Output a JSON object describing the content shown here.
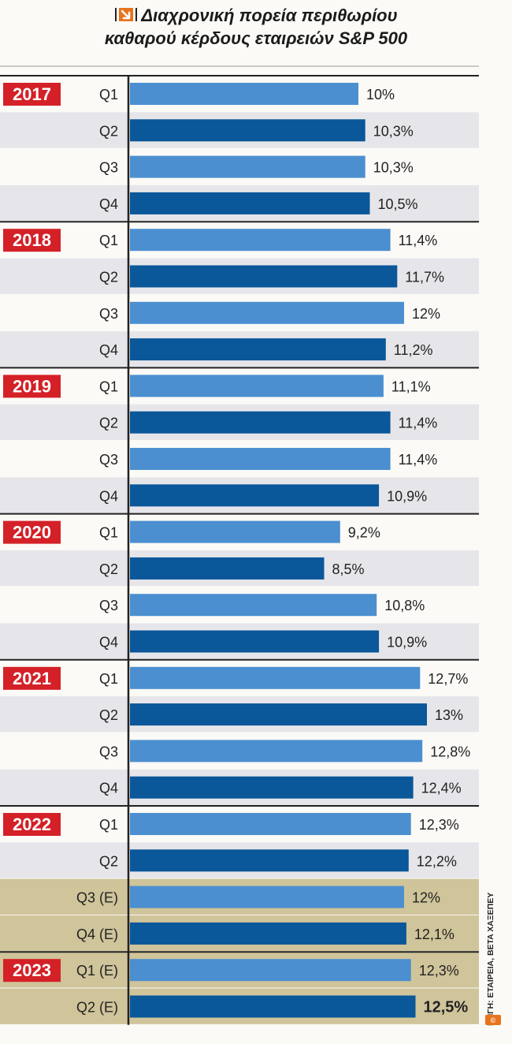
{
  "chart_data": {
    "type": "bar",
    "orientation": "horizontal",
    "title": "Διαχρονική πορεία περιθωρίου καθαρού κέρδους εταιρειών S&P 500",
    "title_line1": "Διαχρονική πορεία περιθωρίου",
    "title_line2": "καθαρού κέρδους εταιρειών S&P 500",
    "source": "ΠΗΓΗ: ΕΤΑΙΡΕΙΑ, BETA ΧΑΞΕΠΕΥ",
    "xlim": [
      0,
      13
    ],
    "series": [
      {
        "name": "Net profit margin",
        "values": [
          10,
          10.3,
          10.3,
          10.5,
          11.4,
          11.7,
          12,
          11.2,
          11.1,
          11.4,
          11.4,
          10.9,
          9.2,
          8.5,
          10.8,
          10.9,
          12.7,
          13,
          12.8,
          12.4,
          12.3,
          12.2,
          12,
          12.1,
          12.3,
          12.5
        ]
      }
    ],
    "rows": [
      {
        "year": "2017",
        "quarter": "Q1",
        "value": 10,
        "label": "10%",
        "estimate": false
      },
      {
        "year": "",
        "quarter": "Q2",
        "value": 10.3,
        "label": "10,3%",
        "estimate": false
      },
      {
        "year": "",
        "quarter": "Q3",
        "value": 10.3,
        "label": "10,3%",
        "estimate": false
      },
      {
        "year": "",
        "quarter": "Q4",
        "value": 10.5,
        "label": "10,5%",
        "estimate": false
      },
      {
        "year": "2018",
        "quarter": "Q1",
        "value": 11.4,
        "label": "11,4%",
        "estimate": false
      },
      {
        "year": "",
        "quarter": "Q2",
        "value": 11.7,
        "label": "11,7%",
        "estimate": false
      },
      {
        "year": "",
        "quarter": "Q3",
        "value": 12,
        "label": "12%",
        "estimate": false
      },
      {
        "year": "",
        "quarter": "Q4",
        "value": 11.2,
        "label": "11,2%",
        "estimate": false
      },
      {
        "year": "2019",
        "quarter": "Q1",
        "value": 11.1,
        "label": "11,1%",
        "estimate": false
      },
      {
        "year": "",
        "quarter": "Q2",
        "value": 11.4,
        "label": "11,4%",
        "estimate": false
      },
      {
        "year": "",
        "quarter": "Q3",
        "value": 11.4,
        "label": "11,4%",
        "estimate": false
      },
      {
        "year": "",
        "quarter": "Q4",
        "value": 10.9,
        "label": "10,9%",
        "estimate": false
      },
      {
        "year": "2020",
        "quarter": "Q1",
        "value": 9.2,
        "label": "9,2%",
        "estimate": false
      },
      {
        "year": "",
        "quarter": "Q2",
        "value": 8.5,
        "label": "8,5%",
        "estimate": false
      },
      {
        "year": "",
        "quarter": "Q3",
        "value": 10.8,
        "label": "10,8%",
        "estimate": false
      },
      {
        "year": "",
        "quarter": "Q4",
        "value": 10.9,
        "label": "10,9%",
        "estimate": false
      },
      {
        "year": "2021",
        "quarter": "Q1",
        "value": 12.7,
        "label": "12,7%",
        "estimate": false
      },
      {
        "year": "",
        "quarter": "Q2",
        "value": 13,
        "label": "13%",
        "estimate": false
      },
      {
        "year": "",
        "quarter": "Q3",
        "value": 12.8,
        "label": "12,8%",
        "estimate": false
      },
      {
        "year": "",
        "quarter": "Q4",
        "value": 12.4,
        "label": "12,4%",
        "estimate": false
      },
      {
        "year": "2022",
        "quarter": "Q1",
        "value": 12.3,
        "label": "12,3%",
        "estimate": false
      },
      {
        "year": "",
        "quarter": "Q2",
        "value": 12.2,
        "label": "12,2%",
        "estimate": false
      },
      {
        "year": "",
        "quarter": "Q3 (E)",
        "value": 12,
        "label": "12%",
        "estimate": true
      },
      {
        "year": "",
        "quarter": "Q4 (E)",
        "value": 12.1,
        "label": "12,1%",
        "estimate": true
      },
      {
        "year": "2023",
        "quarter": "Q1 (E)",
        "value": 12.3,
        "label": "12,3%",
        "estimate": true
      },
      {
        "year": "",
        "quarter": "Q2 (E)",
        "value": 12.5,
        "label": "12,5%",
        "estimate": true,
        "emphasis": true
      }
    ]
  },
  "colors": {
    "bar_light": "#4b8fd0",
    "bar_dark": "#0a5799",
    "year_badge": "#d42027",
    "row_shade": "#e6e6ea",
    "row_plain": "#fbfaf6",
    "estimate_bg": "#cfc49a",
    "separator": "#222222",
    "logo": "#e8731c"
  }
}
